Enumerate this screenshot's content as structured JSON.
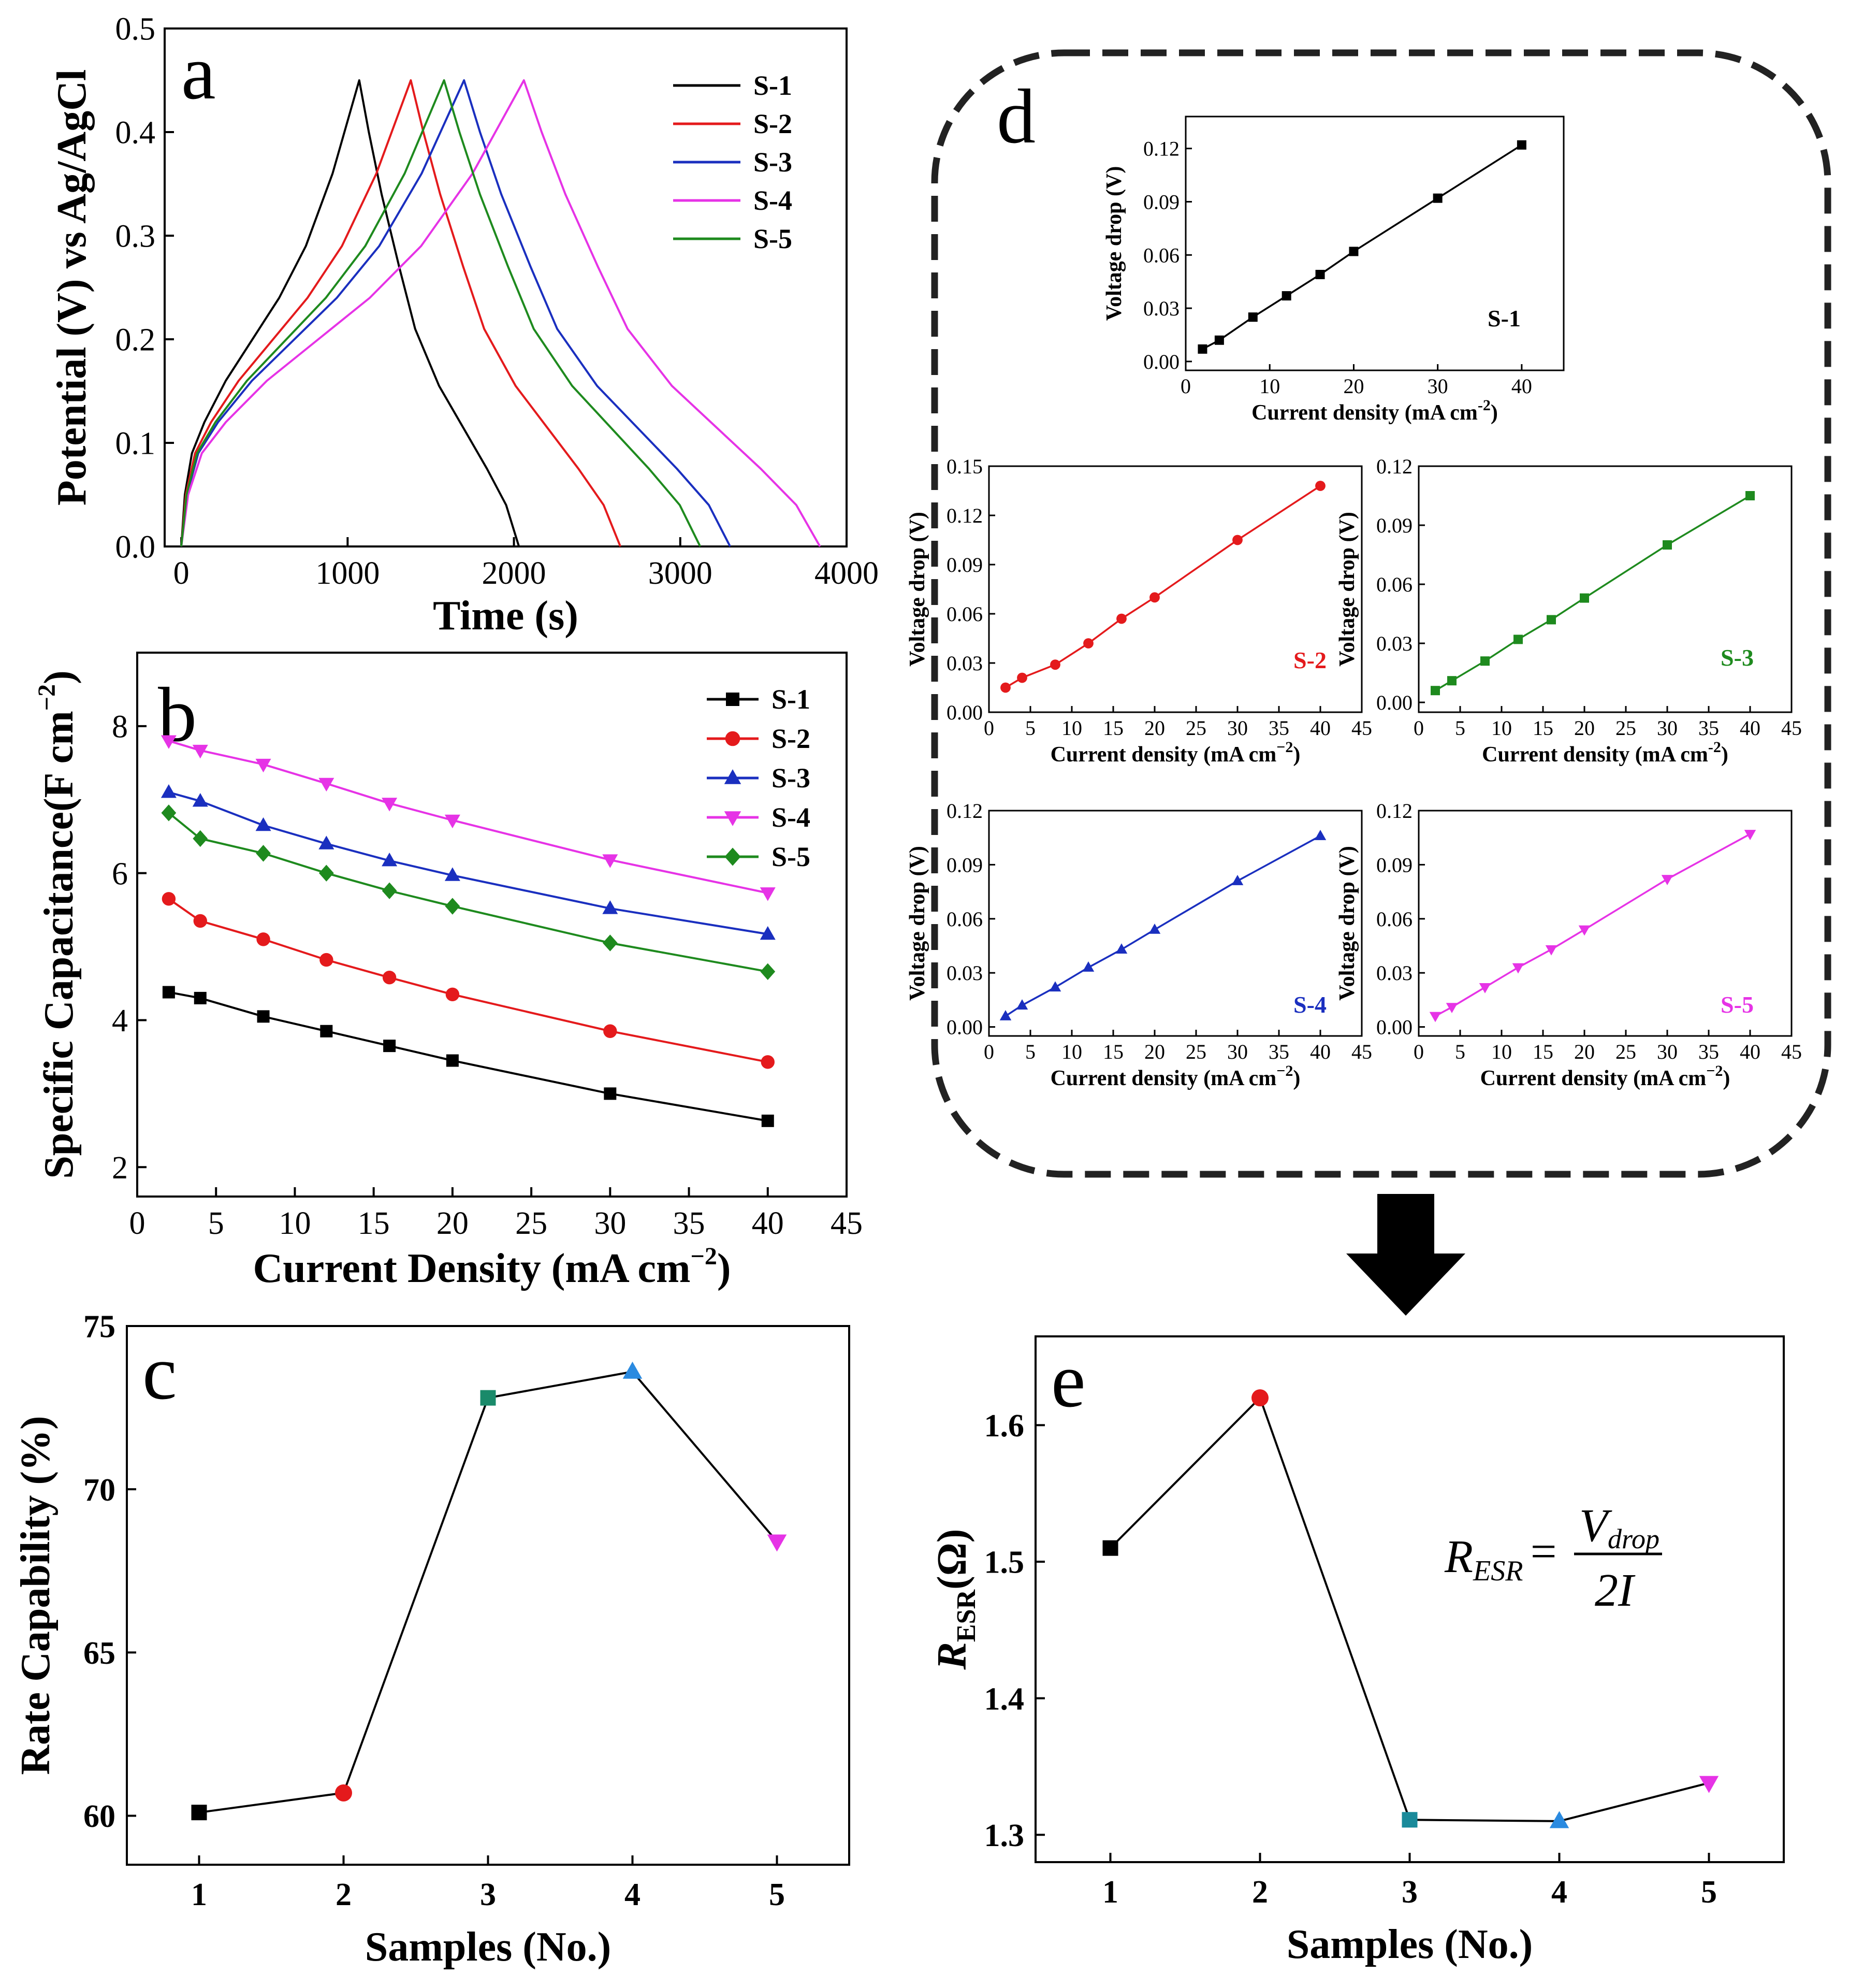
{
  "colors": {
    "s1": "#000000",
    "s2": "#e41a1c",
    "s3": "#1a2fbf",
    "s4": "#e633e6",
    "s5": "#1e8a1e",
    "c_s3": "#1a8a6a",
    "c_s4": "#2a8ae0",
    "e_s3": "#1a8a9a"
  },
  "chart_data": [
    {
      "id": "a",
      "type": "line",
      "letter": "a",
      "xlabel": "Time (s)",
      "ylabel": "Potential (V) vs Ag/AgCl",
      "xlim": [
        -100,
        4000
      ],
      "ylim": [
        0,
        0.5
      ],
      "xticks": [
        "0",
        "1000",
        "2000",
        "3000",
        "4000"
      ],
      "yticks": [
        "0.0",
        "0.1",
        "0.2",
        "0.3",
        "0.4",
        "0.5"
      ],
      "legend_position": "top-right",
      "series": [
        {
          "name": "S-1",
          "peak_time": 1070,
          "end_time": 2030,
          "color": "s1"
        },
        {
          "name": "S-2",
          "peak_time": 1380,
          "end_time": 2640,
          "color": "s2"
        },
        {
          "name": "S-3",
          "peak_time": 1700,
          "end_time": 3300,
          "color": "s3"
        },
        {
          "name": "S-4",
          "peak_time": 2060,
          "end_time": 3840,
          "color": "s4"
        },
        {
          "name": "S-5",
          "peak_time": 1580,
          "end_time": 3120,
          "color": "s5"
        }
      ]
    },
    {
      "id": "b",
      "type": "line",
      "letter": "b",
      "xlabel": "Current Density (mA cm",
      "xlabel_sup": "−2",
      "xlabel_end": ")",
      "ylabel": "Specific Capacitance(F cm",
      "ylabel_sup": "−2",
      "ylabel_end": ")",
      "xlim": [
        0,
        45
      ],
      "ylim": [
        1.6,
        9
      ],
      "xticks": [
        "0",
        "5",
        "10",
        "15",
        "20",
        "25",
        "30",
        "35",
        "40",
        "45"
      ],
      "yticks": [
        "2",
        "4",
        "6",
        "8"
      ],
      "legend_position": "top-right",
      "x": [
        2,
        4,
        8,
        12,
        16,
        20,
        30,
        40
      ],
      "series": [
        {
          "name": "S-1",
          "marker": "square",
          "color": "s1",
          "values": [
            4.38,
            4.3,
            4.05,
            3.85,
            3.65,
            3.45,
            3.0,
            2.63
          ]
        },
        {
          "name": "S-2",
          "marker": "circle",
          "color": "s2",
          "values": [
            5.65,
            5.35,
            5.1,
            4.82,
            4.58,
            4.35,
            3.85,
            3.43
          ]
        },
        {
          "name": "S-3",
          "marker": "triangle-up",
          "color": "s3",
          "values": [
            7.1,
            6.98,
            6.65,
            6.4,
            6.17,
            5.97,
            5.52,
            5.17
          ]
        },
        {
          "name": "S-4",
          "marker": "triangle-down",
          "color": "s4",
          "values": [
            7.8,
            7.67,
            7.48,
            7.22,
            6.95,
            6.72,
            6.18,
            5.73
          ]
        },
        {
          "name": "S-5",
          "marker": "diamond",
          "color": "s5",
          "values": [
            6.82,
            6.47,
            6.27,
            6.0,
            5.76,
            5.55,
            5.05,
            4.66
          ]
        }
      ]
    },
    {
      "id": "c",
      "type": "line",
      "letter": "c",
      "xlabel": "Samples (No.)",
      "ylabel": "Rate Capability (%)",
      "xlim": [
        0.5,
        5.5
      ],
      "ylim": [
        58.5,
        75
      ],
      "xticks": [
        "1",
        "2",
        "3",
        "4",
        "5"
      ],
      "yticks": [
        "60",
        "65",
        "70",
        "75"
      ],
      "x": [
        1,
        2,
        3,
        4,
        5
      ],
      "values": [
        60.1,
        60.7,
        72.8,
        73.6,
        68.4
      ],
      "markers": [
        "square",
        "circle",
        "square",
        "triangle-up",
        "triangle-down"
      ],
      "marker_colors": [
        "s1",
        "s2",
        "c_s3",
        "c_s4",
        "s4"
      ]
    },
    {
      "id": "e",
      "type": "line",
      "letter": "e",
      "xlabel": "Samples (No.)",
      "ylabel_main": "R",
      "ylabel_sub": "ESR",
      "ylabel_end": "(Ω)",
      "xlim": [
        0.5,
        5.5
      ],
      "ylim": [
        1.28,
        1.665
      ],
      "xticks": [
        "1",
        "2",
        "3",
        "4",
        "5"
      ],
      "yticks": [
        "1.3",
        "1.4",
        "1.5",
        "1.6"
      ],
      "x": [
        1,
        2,
        3,
        4,
        5
      ],
      "values": [
        1.51,
        1.62,
        1.311,
        1.31,
        1.338
      ],
      "markers": [
        "square",
        "circle",
        "square",
        "triangle-up",
        "triangle-down"
      ],
      "marker_colors": [
        "s1",
        "s2",
        "e_s3",
        "c_s4",
        "s4"
      ],
      "formula": {
        "lhs": "R",
        "lhs_sub": "ESR",
        "eq": "=",
        "num": "V",
        "num_sub": "drop",
        "den": "2I"
      }
    },
    {
      "id": "d1",
      "type": "line",
      "label": "S-1",
      "marker": "square",
      "color": "s1",
      "xlabel": "Current density (mA cm",
      "xlabel_sup": "-2",
      "xlabel_end": ")",
      "ylabel": "Voltage drop (V)",
      "xlim": [
        0,
        45
      ],
      "ylim": [
        -0.005,
        0.138
      ],
      "xticks": [
        "0",
        "10",
        "20",
        "30",
        "40"
      ],
      "yticks": [
        "0.00",
        "0.03",
        "0.06",
        "0.09",
        "0.12"
      ],
      "x": [
        2,
        4,
        8,
        12,
        16,
        20,
        30,
        40
      ],
      "values": [
        0.007,
        0.012,
        0.025,
        0.037,
        0.049,
        0.062,
        0.092,
        0.122
      ]
    },
    {
      "id": "d2",
      "type": "line",
      "label": "S-2",
      "marker": "circle",
      "color": "s2",
      "xlabel": "Current density (mA cm",
      "xlabel_sup": "−2",
      "xlabel_end": ")",
      "ylabel": "Voltage drop (V)",
      "xlim": [
        0,
        45
      ],
      "ylim": [
        0,
        0.15
      ],
      "xticks": [
        "0",
        "5",
        "10",
        "15",
        "20",
        "25",
        "30",
        "35",
        "40",
        "45"
      ],
      "yticks": [
        "0.00",
        "0.03",
        "0.06",
        "0.09",
        "0.12",
        "0.15"
      ],
      "x": [
        2,
        4,
        8,
        12,
        16,
        20,
        30,
        40
      ],
      "values": [
        0.015,
        0.021,
        0.029,
        0.042,
        0.057,
        0.07,
        0.105,
        0.138
      ]
    },
    {
      "id": "d3",
      "type": "line",
      "label": "S-3",
      "marker": "square",
      "color": "s5",
      "xlabel": "Current density (mA cm",
      "xlabel_sup": "-2",
      "xlabel_end": ")",
      "ylabel": "Voltage drop (V)",
      "xlim": [
        0,
        45
      ],
      "ylim": [
        -0.005,
        0.12
      ],
      "xticks": [
        "0",
        "5",
        "10",
        "15",
        "20",
        "25",
        "30",
        "35",
        "40",
        "45"
      ],
      "yticks": [
        "0.00",
        "0.03",
        "0.06",
        "0.09",
        "0.12"
      ],
      "x": [
        2,
        4,
        8,
        12,
        16,
        20,
        30,
        40
      ],
      "values": [
        0.006,
        0.011,
        0.021,
        0.032,
        0.042,
        0.053,
        0.08,
        0.105
      ]
    },
    {
      "id": "d4",
      "type": "line",
      "label": "S-4",
      "marker": "triangle-up",
      "color": "s3",
      "xlabel": "Current density (mA cm",
      "xlabel_sup": "−2",
      "xlabel_end": ")",
      "ylabel": "Voltage drop (V)",
      "xlim": [
        0,
        45
      ],
      "ylim": [
        -0.005,
        0.12
      ],
      "xticks": [
        "0",
        "5",
        "10",
        "15",
        "20",
        "25",
        "30",
        "35",
        "40",
        "45"
      ],
      "yticks": [
        "0.00",
        "0.03",
        "0.06",
        "0.09",
        "0.12"
      ],
      "x": [
        2,
        4,
        8,
        12,
        16,
        20,
        30,
        40
      ],
      "values": [
        0.006,
        0.012,
        0.022,
        0.033,
        0.043,
        0.054,
        0.081,
        0.106
      ]
    },
    {
      "id": "d5",
      "type": "line",
      "label": "S-5",
      "marker": "triangle-down",
      "color": "s4",
      "xlabel": "Current density (mA cm",
      "xlabel_sup": "−2",
      "xlabel_end": ")",
      "ylabel": "Voltage drop (V)",
      "xlim": [
        0,
        45
      ],
      "ylim": [
        -0.005,
        0.12
      ],
      "xticks": [
        "0",
        "5",
        "10",
        "15",
        "20",
        "25",
        "30",
        "35",
        "40",
        "45"
      ],
      "yticks": [
        "0.00",
        "0.03",
        "0.06",
        "0.09",
        "0.12"
      ],
      "x": [
        2,
        4,
        8,
        12,
        16,
        20,
        30,
        40
      ],
      "values": [
        0.006,
        0.011,
        0.022,
        0.033,
        0.043,
        0.054,
        0.082,
        0.107
      ]
    }
  ],
  "panel_d_letter": "d"
}
